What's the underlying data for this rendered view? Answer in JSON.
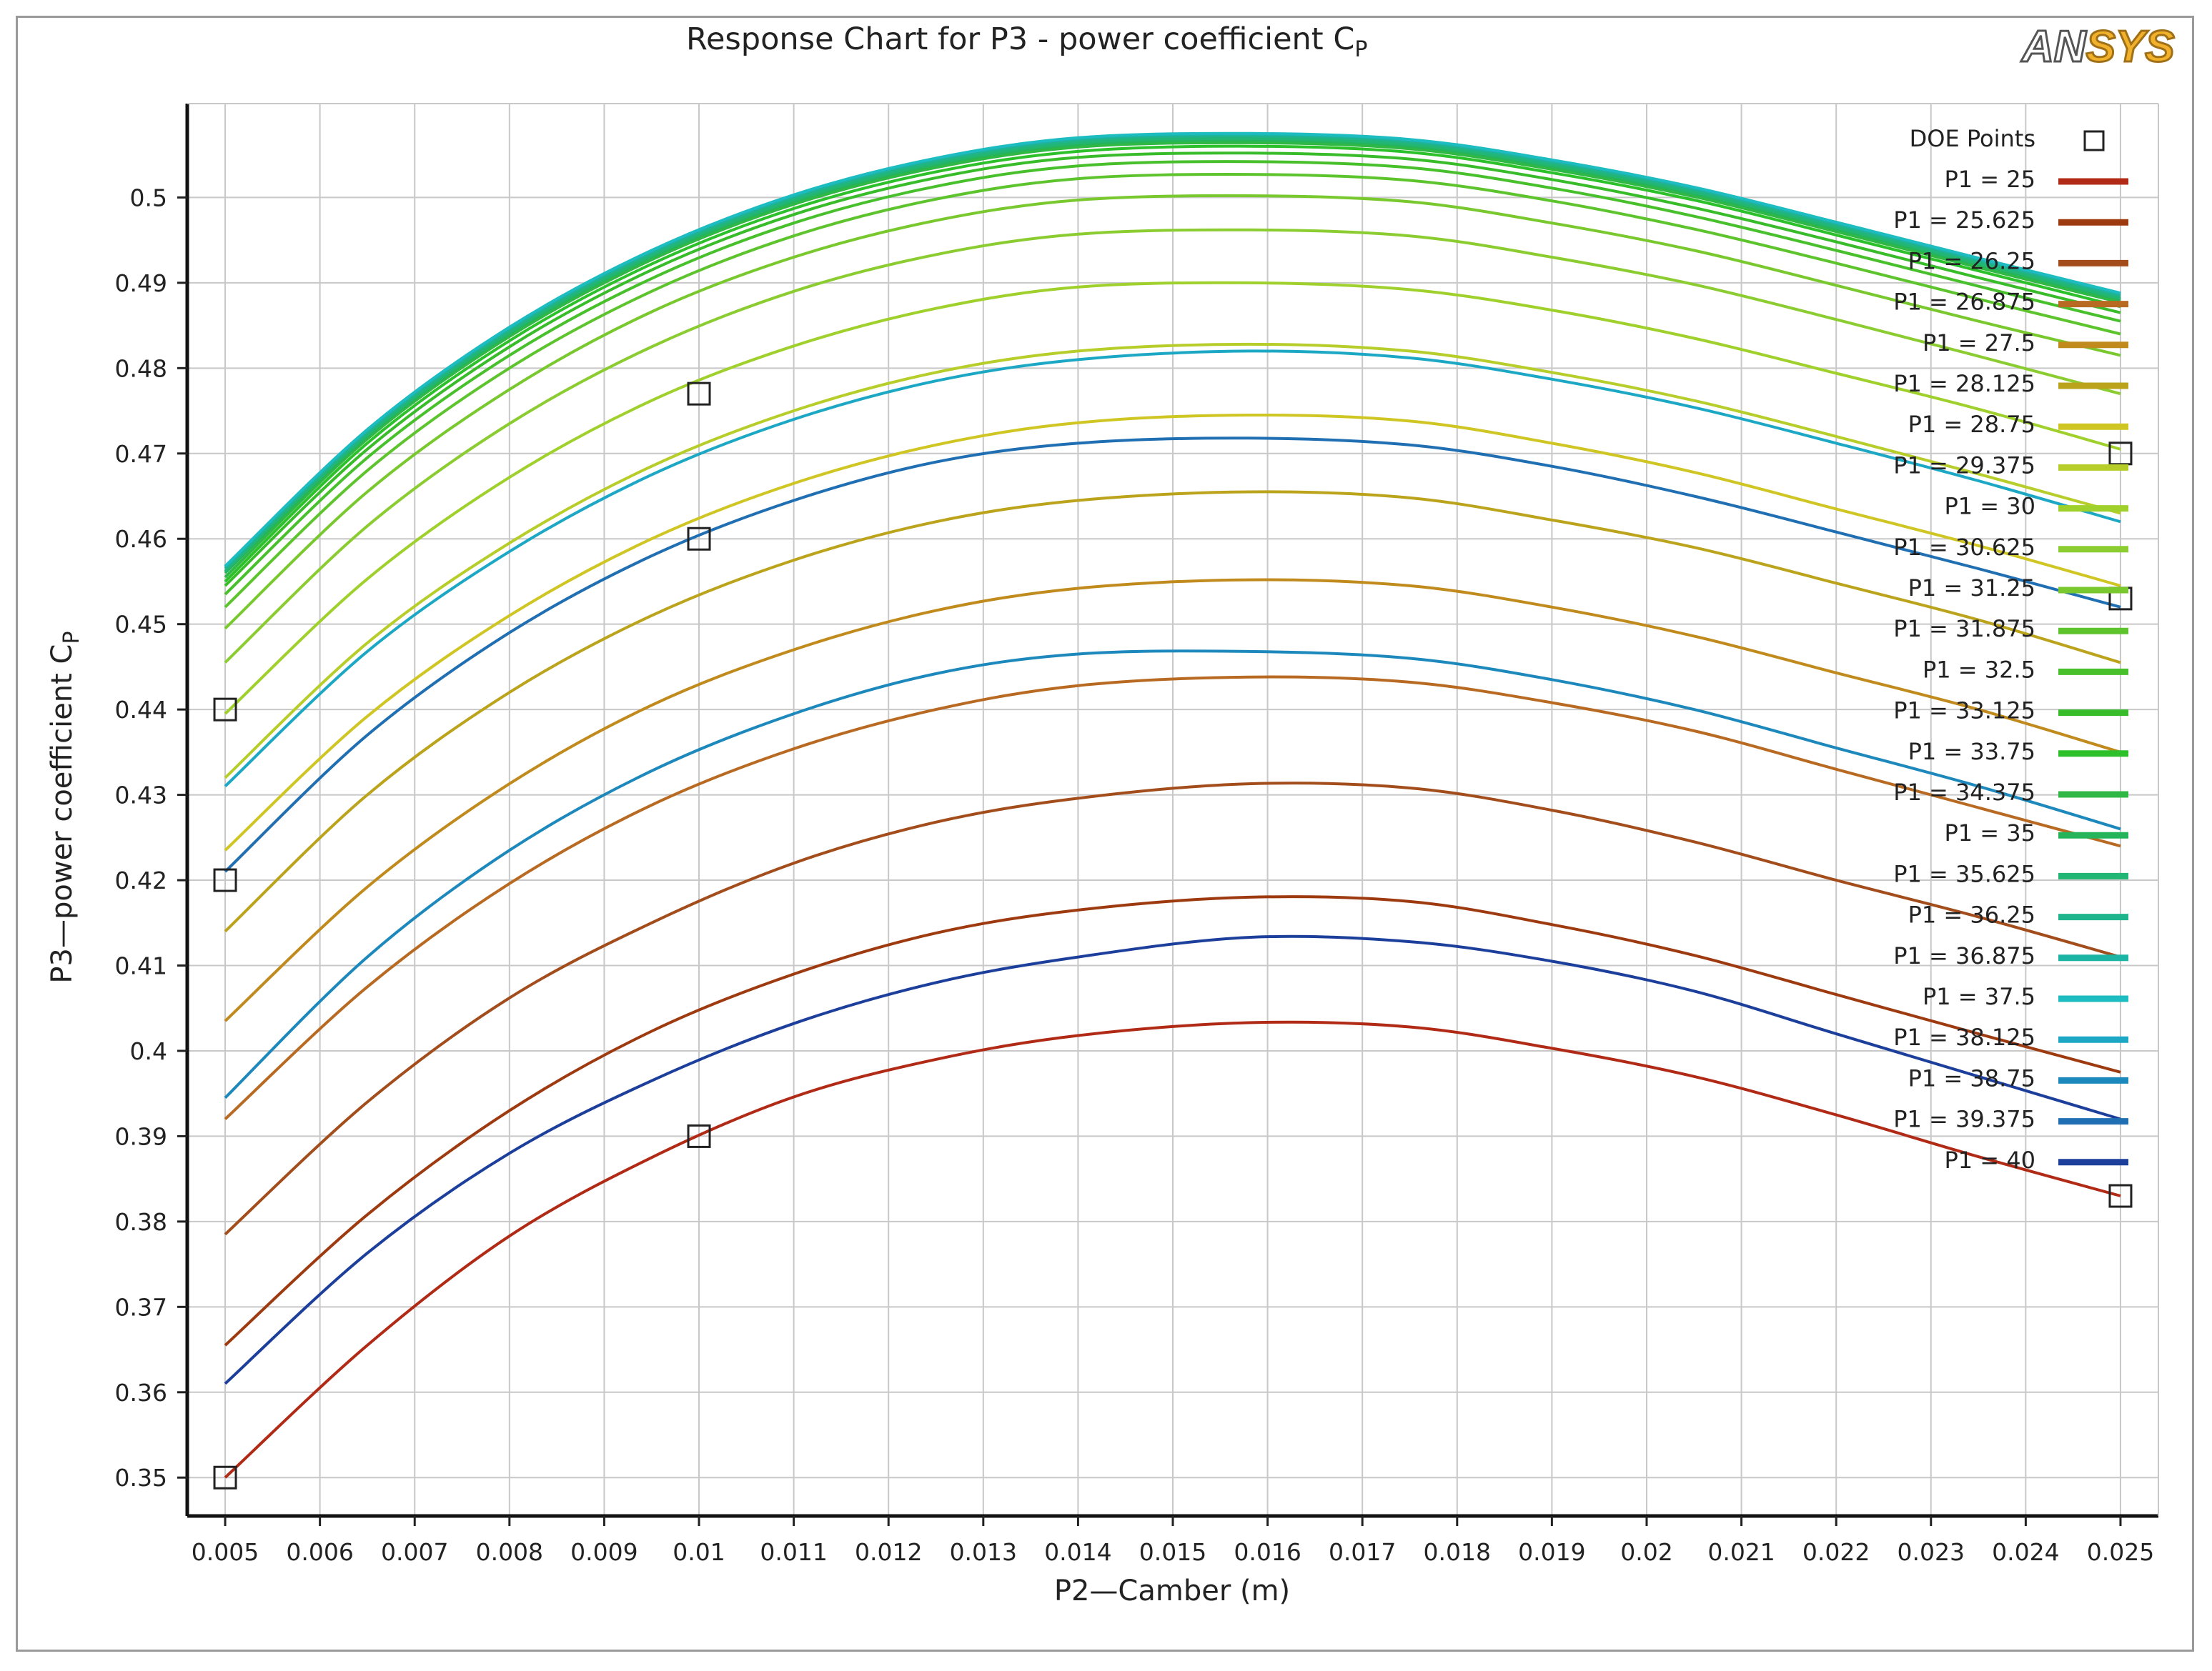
{
  "logo": {
    "text_an": "AN",
    "text_sys": "SYS"
  },
  "chart_data": {
    "type": "line",
    "title": "Response Chart for P3 - power coefficient C",
    "title_subscript": "P",
    "xlabel": "P2—Camber (m)",
    "ylabel": "P3—power coefficient C",
    "ylabel_subscript": "P",
    "xlim": [
      0.0046,
      0.0254
    ],
    "ylim": [
      0.3455,
      0.511
    ],
    "xticks": [
      0.005,
      0.006,
      0.007,
      0.008,
      0.009,
      0.01,
      0.011,
      0.012,
      0.013,
      0.014,
      0.015,
      0.016,
      0.017,
      0.018,
      0.019,
      0.02,
      0.021,
      0.022,
      0.023,
      0.024,
      0.025
    ],
    "xtick_labels": [
      "0.005",
      "0.006",
      "0.007",
      "0.008",
      "0.009",
      "0.01",
      "0.011",
      "0.012",
      "0.013",
      "0.014",
      "0.015",
      "0.016",
      "0.017",
      "0.018",
      "0.019",
      "0.02",
      "0.021",
      "0.022",
      "0.023",
      "0.024",
      "0.025"
    ],
    "yticks": [
      0.35,
      0.36,
      0.37,
      0.38,
      0.39,
      0.4,
      0.41,
      0.42,
      0.43,
      0.44,
      0.45,
      0.46,
      0.47,
      0.48,
      0.49,
      0.5
    ],
    "ytick_labels": [
      "0.35",
      "0.36",
      "0.37",
      "0.38",
      "0.39",
      "0.4",
      "0.41",
      "0.42",
      "0.43",
      "0.44",
      "0.45",
      "0.46",
      "0.47",
      "0.48",
      "0.49",
      "0.5"
    ],
    "grid": true,
    "legend_position": "top-right",
    "legend_doe_label": "DOE Points",
    "x": [
      0.005,
      0.0065,
      0.008,
      0.0095,
      0.011,
      0.0125,
      0.014,
      0.0158,
      0.0175,
      0.019,
      0.0205,
      0.022,
      0.0235,
      0.025
    ],
    "series": [
      {
        "name": "P1 = 25",
        "color": "#b02a16",
        "values": [
          0.35,
          0.3655,
          0.3783,
          0.3875,
          0.3946,
          0.399,
          0.4018,
          0.4033,
          0.4028,
          0.4003,
          0.397,
          0.3925,
          0.3876,
          0.383
        ]
      },
      {
        "name": "P1 = 25.625",
        "color": "#9e3a10",
        "values": [
          0.3655,
          0.3808,
          0.393,
          0.4023,
          0.409,
          0.4138,
          0.4165,
          0.418,
          0.4175,
          0.4148,
          0.4112,
          0.4066,
          0.402,
          0.3975
        ]
      },
      {
        "name": "P1 = 26.25",
        "color": "#a24d1b",
        "values": [
          0.3785,
          0.394,
          0.4062,
          0.415,
          0.422,
          0.4268,
          0.4296,
          0.4313,
          0.4308,
          0.4282,
          0.4245,
          0.42,
          0.4157,
          0.411
        ]
      },
      {
        "name": "P1 = 26.875",
        "color": "#b86a22",
        "values": [
          0.392,
          0.4075,
          0.4196,
          0.4288,
          0.4354,
          0.44,
          0.4428,
          0.4438,
          0.4432,
          0.4408,
          0.4375,
          0.433,
          0.4285,
          0.424
        ]
      },
      {
        "name": "P1 = 27.5",
        "color": "#c08a1c",
        "values": [
          0.4035,
          0.4192,
          0.4313,
          0.4405,
          0.447,
          0.4516,
          0.4542,
          0.4552,
          0.4545,
          0.452,
          0.4486,
          0.4443,
          0.44,
          0.435
        ]
      },
      {
        "name": "P1 = 28.125",
        "color": "#bba41c",
        "values": [
          0.414,
          0.43,
          0.442,
          0.451,
          0.4575,
          0.462,
          0.4645,
          0.4655,
          0.4648,
          0.4622,
          0.459,
          0.4548,
          0.4505,
          0.4455
        ]
      },
      {
        "name": "P1 = 28.75",
        "color": "#cfc624",
        "values": [
          0.4235,
          0.4392,
          0.451,
          0.46,
          0.4665,
          0.471,
          0.4736,
          0.4745,
          0.4738,
          0.4712,
          0.4678,
          0.4635,
          0.4592,
          0.4545
        ]
      },
      {
        "name": "P1 = 29.375",
        "color": "#b7cd2a",
        "values": [
          0.432,
          0.4478,
          0.4595,
          0.4685,
          0.475,
          0.4795,
          0.482,
          0.4828,
          0.482,
          0.4795,
          0.4762,
          0.472,
          0.4676,
          0.463
        ]
      },
      {
        "name": "P1 = 30",
        "color": "#9fd02c",
        "values": [
          0.4395,
          0.4553,
          0.4672,
          0.4762,
          0.4826,
          0.487,
          0.4895,
          0.49,
          0.4892,
          0.4868,
          0.4835,
          0.4794,
          0.4752,
          0.4705
        ]
      },
      {
        "name": "P1 = 30.625",
        "color": "#8bcc30",
        "values": [
          0.4455,
          0.4615,
          0.4735,
          0.4825,
          0.489,
          0.4933,
          0.4957,
          0.4962,
          0.4955,
          0.493,
          0.4898,
          0.4857,
          0.4814,
          0.477
        ]
      },
      {
        "name": "P1 = 31.25",
        "color": "#78c82e",
        "values": [
          0.4495,
          0.4655,
          0.4775,
          0.4866,
          0.493,
          0.4973,
          0.4997,
          0.5002,
          0.4995,
          0.497,
          0.4938,
          0.4897,
          0.4855,
          0.4815
        ]
      },
      {
        "name": "P1 = 31.875",
        "color": "#5ec42e",
        "values": [
          0.452,
          0.468,
          0.48,
          0.489,
          0.4955,
          0.4998,
          0.5022,
          0.5027,
          0.502,
          0.4996,
          0.4963,
          0.4923,
          0.4881,
          0.484
        ]
      },
      {
        "name": "P1 = 32.5",
        "color": "#48c02c",
        "values": [
          0.4535,
          0.4695,
          0.4815,
          0.4905,
          0.497,
          0.5013,
          0.5037,
          0.5042,
          0.5035,
          0.5011,
          0.4978,
          0.4938,
          0.4896,
          0.4855
        ]
      },
      {
        "name": "P1 = 33.125",
        "color": "#38bc2a",
        "values": [
          0.4545,
          0.4705,
          0.4825,
          0.4915,
          0.498,
          0.5023,
          0.5047,
          0.5052,
          0.5045,
          0.5021,
          0.4988,
          0.4948,
          0.4906,
          0.4865
        ]
      },
      {
        "name": "P1 = 33.75",
        "color": "#2cc02a",
        "values": [
          0.455,
          0.4712,
          0.4832,
          0.4922,
          0.4987,
          0.503,
          0.5054,
          0.506,
          0.5053,
          0.5029,
          0.4997,
          0.4956,
          0.4914,
          0.4872
        ]
      },
      {
        "name": "P1 = 34.375",
        "color": "#30b845",
        "values": [
          0.4555,
          0.4717,
          0.4837,
          0.4927,
          0.4992,
          0.5035,
          0.5059,
          0.5064,
          0.5057,
          0.5033,
          0.5001,
          0.496,
          0.4918,
          0.4877
        ]
      },
      {
        "name": "P1 = 35",
        "color": "#26b45a",
        "values": [
          0.456,
          0.472,
          0.484,
          0.493,
          0.4995,
          0.5038,
          0.5062,
          0.5067,
          0.506,
          0.5036,
          0.5004,
          0.4963,
          0.4921,
          0.488
        ]
      },
      {
        "name": "P1 = 35.625",
        "color": "#22b674",
        "values": [
          0.4562,
          0.4722,
          0.4842,
          0.4932,
          0.4997,
          0.504,
          0.5064,
          0.5069,
          0.5062,
          0.5038,
          0.5006,
          0.4965,
          0.4923,
          0.4882
        ]
      },
      {
        "name": "P1 = 36.25",
        "color": "#20b48c",
        "values": [
          0.4565,
          0.4725,
          0.4845,
          0.4935,
          0.5,
          0.5043,
          0.5067,
          0.5072,
          0.5065,
          0.5041,
          0.5009,
          0.4968,
          0.4926,
          0.4885
        ]
      },
      {
        "name": "P1 = 36.875",
        "color": "#1cb4a4",
        "values": [
          0.4567,
          0.4727,
          0.4847,
          0.4937,
          0.5002,
          0.5045,
          0.5069,
          0.5074,
          0.5067,
          0.5043,
          0.5011,
          0.497,
          0.4928,
          0.4887
        ]
      },
      {
        "name": "P1 = 37.5",
        "color": "#1cbcc0",
        "values": [
          0.4568,
          0.4728,
          0.4848,
          0.4938,
          0.5003,
          0.5046,
          0.507,
          0.5075,
          0.5068,
          0.5044,
          0.5012,
          0.4971,
          0.4929,
          0.4888
        ]
      },
      {
        "name": "P1 = 38.125",
        "color": "#1ca8c4",
        "values": [
          0.431,
          0.4468,
          0.4585,
          0.4675,
          0.474,
          0.4785,
          0.481,
          0.482,
          0.4812,
          0.4787,
          0.4754,
          0.4712,
          0.4668,
          0.462
        ]
      },
      {
        "name": "P1 = 38.75",
        "color": "#1c88bc",
        "values": [
          0.3945,
          0.411,
          0.4235,
          0.4328,
          0.4395,
          0.4442,
          0.4465,
          0.4468,
          0.446,
          0.4435,
          0.44,
          0.4355,
          0.431,
          0.426
        ]
      },
      {
        "name": "P1 = 39.375",
        "color": "#1f6fb2",
        "values": [
          0.421,
          0.437,
          0.449,
          0.458,
          0.4645,
          0.469,
          0.4712,
          0.4718,
          0.471,
          0.4685,
          0.465,
          0.4608,
          0.4565,
          0.452
        ]
      },
      {
        "name": "P1 = 40",
        "color": "#1d3f9c",
        "values": [
          0.361,
          0.3763,
          0.388,
          0.3965,
          0.4032,
          0.408,
          0.411,
          0.4133,
          0.4128,
          0.4105,
          0.407,
          0.402,
          0.397,
          0.392
        ]
      }
    ],
    "doe_points": [
      {
        "x": 0.005,
        "y": 0.35
      },
      {
        "x": 0.005,
        "y": 0.42
      },
      {
        "x": 0.005,
        "y": 0.44
      },
      {
        "x": 0.01,
        "y": 0.39
      },
      {
        "x": 0.01,
        "y": 0.46
      },
      {
        "x": 0.01,
        "y": 0.477
      },
      {
        "x": 0.025,
        "y": 0.383
      },
      {
        "x": 0.025,
        "y": 0.453
      },
      {
        "x": 0.025,
        "y": 0.47
      }
    ]
  }
}
